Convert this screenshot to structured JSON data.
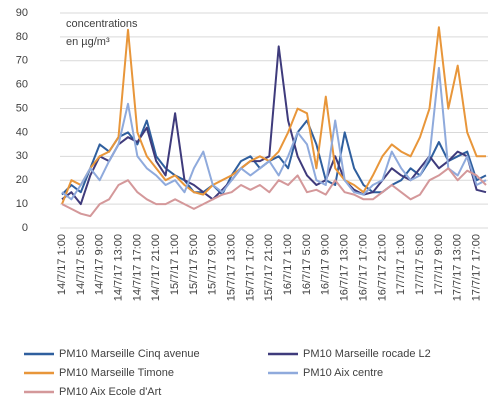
{
  "chart_data": {
    "type": "line",
    "annotation": [
      "concentrations",
      "en µg/m³"
    ],
    "categories": [
      "14/7/17 1:00",
      null,
      "14/7/17 5:00",
      null,
      "14/7/17 9:00",
      null,
      "14/7/17 13:00",
      null,
      "14/7/17 17:00",
      null,
      "14/7/17 21:00",
      null,
      "15/7/17 1:00",
      null,
      "15/7/17 5:00",
      null,
      "15/7/17 9:00",
      null,
      "15/7/17 13:00",
      null,
      "15/7/17 17:00",
      null,
      "15/7/17 21:00",
      null,
      "16/7/17 1:00",
      null,
      "16/7/17 5:00",
      null,
      "16/7/17 9:00",
      null,
      "16/7/17 13:00",
      null,
      "16/7/17 17:00",
      null,
      "16/7/17 21:00",
      null,
      "17/7/17 1:00",
      null,
      "17/7/17 5:00",
      null,
      "17/7/17 9:00",
      null,
      "17/7/17 13:00",
      null,
      "17/7/17 17:00",
      null
    ],
    "series": [
      {
        "name": "PM10 Marseille Cinq avenue",
        "color": "#2f5f9e",
        "values": [
          14,
          18,
          15,
          25,
          35,
          32,
          38,
          40,
          35,
          45,
          30,
          25,
          22,
          20,
          15,
          15,
          18,
          14,
          22,
          28,
          30,
          25,
          28,
          30,
          25,
          40,
          45,
          35,
          20,
          18,
          40,
          25,
          18,
          15,
          15,
          18,
          20,
          25,
          22,
          28,
          36,
          28,
          30,
          32,
          20,
          22
        ]
      },
      {
        "name": "PM10 Marseille rocade L2",
        "color": "#3f3b7c",
        "values": [
          12,
          15,
          10,
          22,
          30,
          28,
          35,
          38,
          36,
          42,
          28,
          22,
          48,
          20,
          18,
          15,
          12,
          16,
          20,
          25,
          28,
          28,
          30,
          76,
          45,
          30,
          22,
          18,
          20,
          30,
          20,
          16,
          14,
          15,
          20,
          25,
          22,
          20,
          25,
          30,
          25,
          28,
          32,
          30,
          16,
          15
        ]
      },
      {
        "name": "PM10 Marseille Timone",
        "color": "#e8963a",
        "values": [
          10,
          20,
          18,
          25,
          30,
          32,
          38,
          83,
          40,
          30,
          25,
          20,
          22,
          18,
          15,
          14,
          18,
          20,
          22,
          25,
          28,
          30,
          28,
          32,
          40,
          50,
          48,
          25,
          55,
          25,
          20,
          18,
          15,
          22,
          30,
          35,
          32,
          30,
          38,
          50,
          84,
          50,
          68,
          40,
          30,
          30
        ]
      },
      {
        "name": "PM10 Aix centre",
        "color": "#8faadc",
        "values": [
          15,
          12,
          18,
          25,
          20,
          28,
          35,
          52,
          30,
          25,
          22,
          18,
          20,
          15,
          25,
          32,
          18,
          15,
          20,
          25,
          22,
          25,
          28,
          22,
          30,
          40,
          35,
          20,
          18,
          45,
          20,
          15,
          14,
          18,
          20,
          32,
          25,
          20,
          22,
          30,
          67,
          25,
          22,
          30,
          18,
          20
        ]
      },
      {
        "name": "PM10 Aix Ecole d'Art",
        "color": "#d4989a",
        "values": [
          10,
          8,
          6,
          5,
          10,
          12,
          18,
          20,
          15,
          12,
          10,
          10,
          12,
          10,
          8,
          10,
          12,
          14,
          15,
          18,
          16,
          18,
          15,
          20,
          18,
          22,
          15,
          16,
          14,
          20,
          15,
          14,
          12,
          12,
          15,
          18,
          15,
          12,
          14,
          20,
          22,
          25,
          20,
          24,
          22,
          18
        ]
      }
    ],
    "ylim": [
      0,
      90
    ],
    "yticks": [
      0,
      10,
      20,
      30,
      40,
      50,
      60,
      70,
      80,
      90
    ],
    "grid": true
  }
}
